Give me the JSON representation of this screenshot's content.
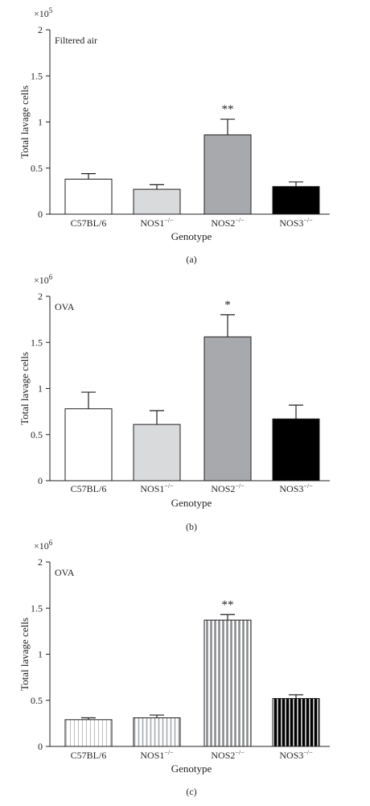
{
  "chart_data": [
    {
      "type": "bar",
      "panel_label": "(a)",
      "annotation": "Filtered air",
      "scale_base": "×10",
      "scale_exp": "5",
      "ylabel": "Total lavage cells",
      "xlabel": "Genotype",
      "ylim": [
        0,
        2
      ],
      "yticks": [
        "0",
        "0.5",
        "1",
        "1.5",
        "2"
      ],
      "categories": [
        {
          "base": "C57BL/6",
          "sup": ""
        },
        {
          "base": "NOS1",
          "sup": "−/−"
        },
        {
          "base": "NOS2",
          "sup": "−/−"
        },
        {
          "base": "NOS3",
          "sup": "−/−"
        }
      ],
      "values": [
        0.38,
        0.27,
        0.86,
        0.3
      ],
      "errors": [
        0.06,
        0.05,
        0.17,
        0.05
      ],
      "significance": [
        "",
        "",
        "**",
        ""
      ],
      "bar_colors": [
        "#ffffff",
        "#d9dadb",
        "#a7a9ac",
        "#000000"
      ],
      "striped": false
    },
    {
      "type": "bar",
      "panel_label": "(b)",
      "annotation": "OVA",
      "scale_base": "×10",
      "scale_exp": "6",
      "ylabel": "Total lavage cells",
      "xlabel": "Genotype",
      "ylim": [
        0,
        2
      ],
      "yticks": [
        "0",
        "0.5",
        "1",
        "1.5",
        "2"
      ],
      "categories": [
        {
          "base": "C57BL/6",
          "sup": ""
        },
        {
          "base": "NOS1",
          "sup": "−/−"
        },
        {
          "base": "NOS2",
          "sup": "−/−"
        },
        {
          "base": "NOS3",
          "sup": "−/−"
        }
      ],
      "values": [
        0.78,
        0.61,
        1.56,
        0.67
      ],
      "errors": [
        0.18,
        0.15,
        0.24,
        0.15
      ],
      "significance": [
        "",
        "",
        "*",
        ""
      ],
      "bar_colors": [
        "#ffffff",
        "#d9dadb",
        "#a7a9ac",
        "#000000"
      ],
      "striped": false
    },
    {
      "type": "bar",
      "panel_label": "(c)",
      "annotation": "OVA",
      "scale_base": "×10",
      "scale_exp": "6",
      "ylabel": "Total lavage cells",
      "xlabel": "Genotype",
      "ylim": [
        0,
        2
      ],
      "yticks": [
        "0",
        "0.5",
        "1",
        "1.5",
        "2"
      ],
      "categories": [
        {
          "base": "C57BL/6",
          "sup": ""
        },
        {
          "base": "NOS1",
          "sup": "−/−"
        },
        {
          "base": "NOS2",
          "sup": "−/−"
        },
        {
          "base": "NOS3",
          "sup": "−/−"
        }
      ],
      "values": [
        0.29,
        0.31,
        1.37,
        0.52
      ],
      "errors": [
        0.02,
        0.03,
        0.06,
        0.04
      ],
      "significance": [
        "",
        "",
        "**",
        ""
      ],
      "bar_colors": [
        "#ffffff",
        "#d9dadb",
        "#a7a9ac",
        "#000000"
      ],
      "striped": true
    }
  ]
}
